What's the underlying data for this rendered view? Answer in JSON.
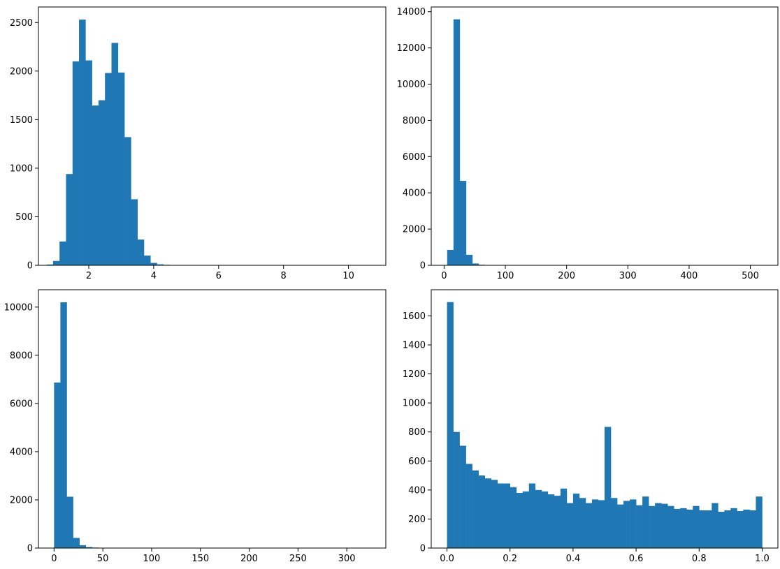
{
  "chart_data": [
    {
      "type": "bar",
      "xlim": [
        0.45,
        11.15
      ],
      "ylim": [
        0,
        2660
      ],
      "xticks": [
        2,
        4,
        6,
        8,
        10
      ],
      "yticks": [
        0,
        500,
        1000,
        1500,
        2000,
        2500
      ],
      "bar_color": "#1f77b4",
      "bin_start": 0.7,
      "bin_width": 0.2,
      "values": [
        8,
        45,
        245,
        940,
        2100,
        2530,
        2110,
        1645,
        1700,
        1980,
        2290,
        1985,
        1320,
        680,
        265,
        100,
        25,
        10,
        5,
        3,
        2,
        2,
        1,
        1,
        1,
        1,
        1,
        0,
        0,
        0,
        0,
        0,
        0,
        0,
        0,
        0,
        0,
        0,
        0,
        0,
        0,
        0,
        0,
        0,
        0,
        0,
        0,
        0,
        0,
        1
      ]
    },
    {
      "type": "bar",
      "xlim": [
        -21,
        545
      ],
      "ylim": [
        0,
        14260
      ],
      "xticks": [
        0,
        100,
        200,
        300,
        400,
        500
      ],
      "yticks": [
        0,
        2000,
        4000,
        6000,
        8000,
        10000,
        12000,
        14000
      ],
      "bar_color": "#1f77b4",
      "bin_start": 5,
      "bin_width": 10.3,
      "values": [
        850,
        13580,
        4660,
        580,
        100,
        30,
        10,
        5,
        3,
        2,
        1,
        1,
        1,
        1,
        0,
        0,
        0,
        0,
        0,
        0,
        0,
        0,
        0,
        0,
        0,
        0,
        0,
        0,
        0,
        0,
        0,
        0,
        0,
        0,
        0,
        0,
        0,
        0,
        0,
        0,
        0,
        0,
        0,
        0,
        0,
        0,
        0,
        0,
        0,
        1
      ]
    },
    {
      "type": "bar",
      "xlim": [
        -16,
        340
      ],
      "ylim": [
        0,
        10720
      ],
      "xticks": [
        0,
        50,
        100,
        150,
        200,
        250,
        300
      ],
      "yticks": [
        0,
        2000,
        4000,
        6000,
        8000,
        10000
      ],
      "bar_color": "#1f77b4",
      "bin_start": 0,
      "bin_width": 6.5,
      "values": [
        6870,
        10200,
        2130,
        420,
        120,
        40,
        20,
        8,
        5,
        3,
        2,
        1,
        1,
        1,
        0,
        0,
        0,
        0,
        0,
        0,
        0,
        0,
        0,
        0,
        0,
        0,
        0,
        0,
        0,
        0,
        0,
        0,
        0,
        0,
        0,
        0,
        0,
        0,
        0,
        0,
        0,
        0,
        0,
        0,
        0,
        0,
        0,
        0,
        0,
        1
      ]
    },
    {
      "type": "bar",
      "xlim": [
        -0.05,
        1.05
      ],
      "ylim": [
        0,
        1780
      ],
      "xticks": [
        0.0,
        0.2,
        0.4,
        0.6,
        0.8,
        1.0
      ],
      "ytick_labels_decimals": 1,
      "yticks": [
        0,
        200,
        400,
        600,
        800,
        1000,
        1200,
        1400,
        1600
      ],
      "bar_color": "#1f77b4",
      "bin_start": 0,
      "bin_width": 0.02,
      "values": [
        1695,
        800,
        705,
        580,
        535,
        500,
        480,
        470,
        445,
        445,
        420,
        380,
        390,
        445,
        400,
        390,
        370,
        360,
        410,
        310,
        375,
        345,
        310,
        335,
        330,
        835,
        345,
        300,
        325,
        335,
        295,
        355,
        290,
        310,
        305,
        290,
        270,
        275,
        265,
        290,
        260,
        260,
        310,
        250,
        260,
        275,
        255,
        265,
        260,
        355
      ]
    }
  ]
}
